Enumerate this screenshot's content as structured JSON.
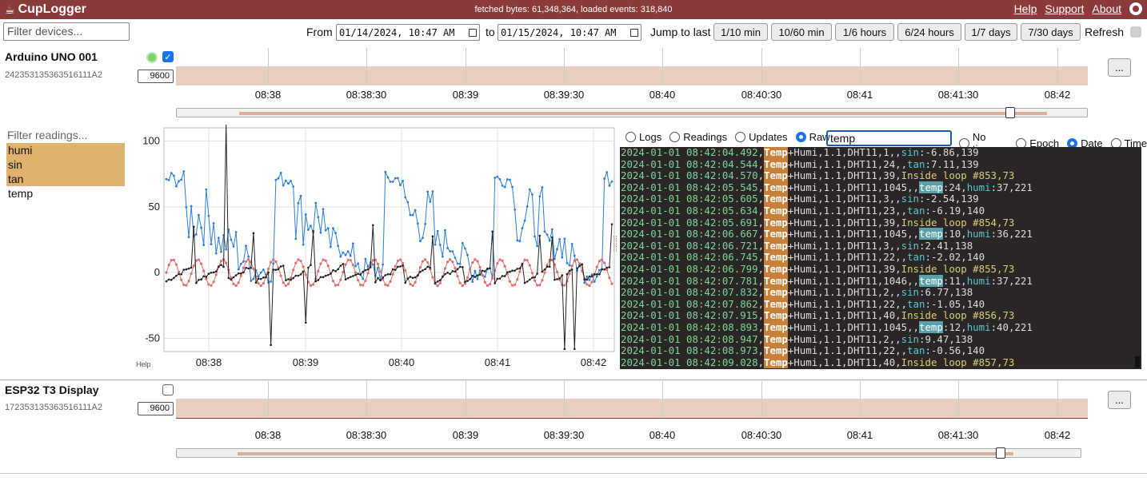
{
  "header": {
    "app_name": "CupLogger",
    "stats": "fetched bytes: 61,348,364, loaded events: 318,840",
    "links": [
      "Help",
      "Support",
      "About"
    ]
  },
  "toolbar": {
    "filter_devices_placeholder": "Filter devices...",
    "from_label": "From",
    "from_value": "01/14/2024, 10:47 AM",
    "to_label": "to",
    "to_value": "01/15/2024, 10:47 AM",
    "jump_label": "Jump to last",
    "jump_buttons": [
      "1/10 min",
      "10/60 min",
      "1/6 hours",
      "6/24 hours",
      "1/7 days",
      "7/30 days"
    ],
    "refresh_label": "Refresh"
  },
  "devices": [
    {
      "name": "Arduino UNO 001",
      "serial": "24235313536351 6111A2",
      "baud": "9600",
      "checked": true,
      "status": "online"
    },
    {
      "name": "ESP32 T3 Display",
      "serial": "172353135363516111A2",
      "baud": "9600",
      "checked": false
    }
  ],
  "timeline_ticks": [
    "08:38",
    "08:38:30",
    "08:39",
    "08:39:30",
    "08:40",
    "08:40:30",
    "08:41",
    "08:41:30",
    "08:42"
  ],
  "more_button": "...",
  "readings": {
    "filter_placeholder": "Filter readings...",
    "items": [
      {
        "label": "humi",
        "selected": true
      },
      {
        "label": "sin",
        "selected": true
      },
      {
        "label": "tan",
        "selected": true
      },
      {
        "label": "temp",
        "selected": false
      }
    ]
  },
  "chart_help": "Help",
  "log_panel": {
    "modes": [
      "Logs",
      "Readings",
      "Updates",
      "Raw"
    ],
    "selected_mode": "Raw",
    "search_value": "temp",
    "time_modes": [
      "No time",
      "Epoch",
      "Date",
      "Time"
    ],
    "selected_time_mode": "Date",
    "lines": [
      [
        "2024-01-01 08:42:04.492",
        "1,,",
        "sin",
        "-6.86,139"
      ],
      [
        "2024-01-01 08:42:04.544",
        "24,,",
        "tan",
        "7.11,139"
      ],
      [
        "2024-01-01 08:42:04.570",
        "39,",
        "",
        "Inside loop #853,73"
      ],
      [
        "2024-01-01 08:42:05.545",
        "1045,,",
        "temp",
        "24",
        "humi",
        "37,221"
      ],
      [
        "2024-01-01 08:42:05.605",
        "3,,",
        "sin",
        "-2.54,139"
      ],
      [
        "2024-01-01 08:42:05.634",
        "23,,",
        "tan",
        "-6.19,140"
      ],
      [
        "2024-01-01 08:42:05.691",
        "39,",
        "",
        "Inside loop #854,73"
      ],
      [
        "2024-01-01 08:42:06.667",
        "1045,,",
        "temp",
        "10",
        "humi",
        "36,221"
      ],
      [
        "2024-01-01 08:42:06.721",
        "3,,",
        "sin",
        "2.41,138"
      ],
      [
        "2024-01-01 08:42:06.745",
        "22,,",
        "tan",
        "-2.02,140"
      ],
      [
        "2024-01-01 08:42:06.799",
        "39,",
        "",
        "Inside loop #855,73"
      ],
      [
        "2024-01-01 08:42:07.781",
        "1046,,",
        "temp",
        "11",
        "humi",
        "37,221"
      ],
      [
        "2024-01-01 08:42:07.832",
        "2,,",
        "sin",
        "6.77,138"
      ],
      [
        "2024-01-01 08:42:07.862",
        "22,,",
        "tan",
        "-1.05,140"
      ],
      [
        "2024-01-01 08:42:07.915",
        "40,",
        "",
        "Inside loop #856,73"
      ],
      [
        "2024-01-01 08:42:08.893",
        "1045,,",
        "temp",
        "12",
        "humi",
        "40,221"
      ],
      [
        "2024-01-01 08:42:08.947",
        "2,,",
        "sin",
        "9.47,138"
      ],
      [
        "2024-01-01 08:42:08.973",
        "22,,",
        "tan",
        "-0.56,140"
      ],
      [
        "2024-01-01 08:42:09.028",
        "40,",
        "",
        "Inside loop #857,73"
      ]
    ],
    "line_key": "Temp",
    "line_mid": "+Humi,1.1,DHT11,"
  },
  "chart_data": {
    "type": "line",
    "yticks": [
      100,
      50,
      0,
      -50
    ],
    "xticks": [
      "08:38",
      "08:39",
      "08:40",
      "08:41",
      "08:42"
    ],
    "ylim": [
      -60,
      110
    ],
    "colors": {
      "humi": "#2f7fd6",
      "sin": "#e0706a",
      "tan": "#222222"
    },
    "series": [
      {
        "name": "humi",
        "amplitude_range": [
          -20,
          75
        ]
      },
      {
        "name": "sin",
        "amplitude_range": [
          -10,
          10
        ]
      },
      {
        "name": "tan",
        "amplitude_range": [
          -60,
          115
        ]
      }
    ]
  }
}
